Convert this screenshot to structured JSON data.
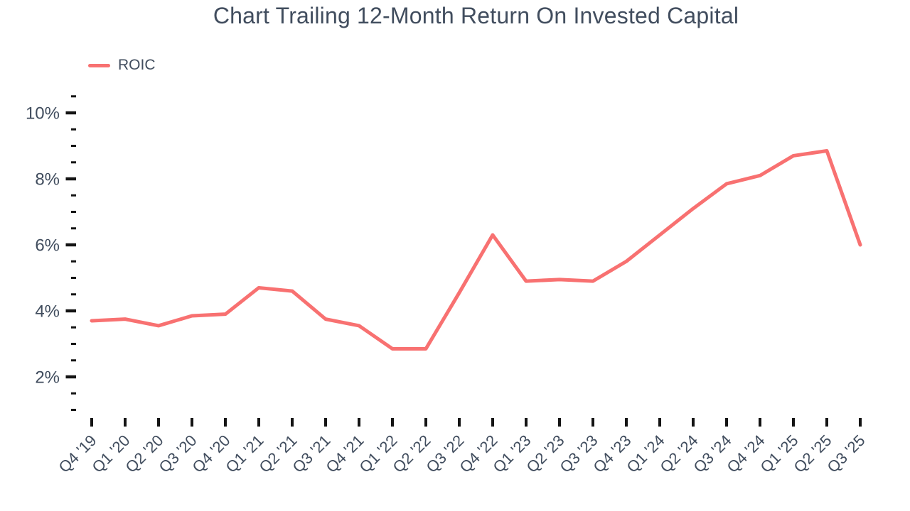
{
  "chart_data": {
    "type": "line",
    "title": "Chart Trailing 12-Month Return On Invested Capital",
    "xlabel": "",
    "ylabel": "",
    "grid": false,
    "background": "#FFFFFF",
    "legend": {
      "position": "top-left",
      "entries": [
        "ROIC"
      ]
    },
    "categories": [
      "Q4 '19",
      "Q1 '20",
      "Q2 '20",
      "Q3 '20",
      "Q4 '20",
      "Q1 '21",
      "Q2 '21",
      "Q3 '21",
      "Q4 '21",
      "Q1 '22",
      "Q2 '22",
      "Q3 '22",
      "Q4 '22",
      "Q1 '23",
      "Q2 '23",
      "Q3 '23",
      "Q4 '23",
      "Q1 '24",
      "Q2 '24",
      "Q3 '24",
      "Q4 '24",
      "Q1 '25",
      "Q2 '25",
      "Q3 '25"
    ],
    "series": [
      {
        "name": "ROIC",
        "color": "#F87171",
        "unit": "%",
        "values": [
          3.7,
          3.75,
          3.55,
          3.85,
          3.9,
          4.7,
          4.6,
          3.75,
          3.55,
          2.85,
          2.85,
          4.55,
          6.3,
          4.9,
          4.95,
          4.9,
          5.5,
          6.3,
          7.1,
          7.85,
          8.1,
          8.7,
          8.85,
          6.0
        ]
      }
    ],
    "y_axis": {
      "range": [
        1,
        10.5
      ],
      "minor_tick_step": 0.5,
      "major_ticks": [
        2,
        4,
        6,
        8,
        10
      ],
      "major_tick_labels": [
        "2%",
        "4%",
        "6%",
        "8%",
        "10%"
      ],
      "format": "percent"
    },
    "colors": {
      "line": "#F87171",
      "text": "#414D5E",
      "tick": "#141414",
      "background": "#FFFFFF"
    }
  }
}
